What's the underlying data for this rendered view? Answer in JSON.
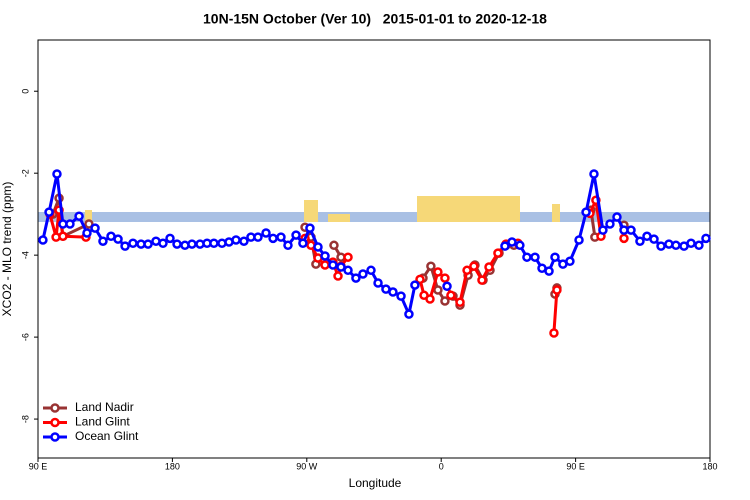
{
  "chart_data": {
    "type": "line",
    "title": "10N-15N October (Ver 10)   2015-01-01 to 2020-12-18",
    "x_label": "Longitude",
    "y_label": "XCO2 - MLO trend (ppm)",
    "xlim": [
      90,
      540
    ],
    "ylim": [
      -8.95,
      1.25
    ],
    "xticks": [
      {
        "value": 90,
        "label": "90 E"
      },
      180,
      {
        "value": 270,
        "label": "90 W"
      },
      {
        "value": 360,
        "label": "0"
      },
      {
        "value": 450,
        "label": "90 E"
      },
      {
        "value": 540,
        "label": "180"
      }
    ],
    "yticks": [
      0,
      -2,
      -4,
      -6,
      -8
    ],
    "legend": "bottom-left",
    "series": [
      {
        "name": "Land Nadir",
        "color": "#993333",
        "x": [
          100.0,
          104.1,
          106.7,
          124.1,
          null,
          268.8,
          272.8,
          276.1,
          null,
          288.2,
          292.9,
          null,
          347.8,
          353.1,
          357.8,
          362.5,
          367.9,
          372.6,
          378.0,
          382.6,
          388.0,
          392.7,
          398.7,
          403.4,
          408.7,
          null,
          436.2,
          437.5,
          null,
          460.3,
          462.9,
          null,
          482.4
        ],
        "values": [
          -3.0,
          -2.61,
          -3.54,
          -3.24,
          null,
          -3.32,
          -3.56,
          -4.22,
          null,
          -3.76,
          -4.05,
          null,
          -4.56,
          -4.27,
          -4.85,
          -5.12,
          -5.0,
          -5.22,
          -4.49,
          -4.24,
          -4.61,
          -4.37,
          -3.95,
          -3.76,
          -3.76,
          null,
          -4.95,
          -4.8,
          null,
          -2.9,
          -3.56,
          null,
          -3.27
        ]
      },
      {
        "name": "Land Glint",
        "color": "#ff0000",
        "x": [
          98.0,
          102.1,
          104.1,
          106.7,
          122.1,
          null,
          268.8,
          272.8,
          277.5,
          282.2,
          287.5,
          290.9,
          292.9,
          297.6,
          null,
          345.8,
          348.5,
          352.5,
          357.8,
          362.5,
          366.5,
          372.6,
          377.3,
          381.9,
          387.3,
          392.0,
          398.0,
          403.4,
          411.4,
          null,
          435.5,
          437.5,
          null,
          459.6,
          463.6,
          467.0,
          null,
          482.4
        ],
        "values": [
          -3.0,
          -3.56,
          -2.9,
          -3.54,
          -3.56,
          null,
          -3.59,
          -3.76,
          -4.07,
          -4.24,
          -4.17,
          -4.51,
          -4.27,
          -4.05,
          null,
          -4.59,
          -4.98,
          -5.07,
          -4.41,
          -4.56,
          -4.98,
          -5.15,
          -4.37,
          -4.27,
          -4.61,
          -4.29,
          -3.95,
          -3.73,
          -3.71,
          null,
          -5.9,
          -4.85,
          null,
          -2.98,
          -2.66,
          -3.54,
          null,
          -3.59
        ]
      },
      {
        "name": "Ocean Glint",
        "color": "#0000ff",
        "x": [
          93.3,
          97.4,
          102.7,
          106.7,
          111.4,
          117.5,
          122.8,
          128.2,
          133.5,
          138.9,
          143.6,
          148.3,
          153.6,
          159.0,
          163.7,
          169.0,
          173.7,
          178.4,
          183.1,
          188.4,
          193.1,
          198.5,
          203.2,
          207.8,
          213.2,
          217.9,
          222.6,
          227.9,
          232.6,
          237.3,
          242.7,
          247.4,
          252.7,
          257.4,
          262.8,
          267.4,
          272.1,
          277.5,
          282.2,
          287.5,
          292.9,
          297.6,
          302.9,
          307.6,
          313.0,
          317.7,
          323.0,
          327.7,
          333.1,
          338.4,
          342.4,
          null,
          363.9,
          null,
          402.7,
          407.4,
          412.7,
          417.4,
          422.8,
          427.5,
          432.2,
          436.2,
          441.5,
          446.2,
          452.3,
          457.0,
          462.3,
          468.3,
          473.0,
          477.7,
          482.4,
          487.1,
          493.1,
          497.8,
          502.5,
          507.2,
          512.5,
          517.2,
          522.6,
          527.3,
          532.6,
          537.3
        ],
        "values": [
          -3.63,
          -2.95,
          -2.02,
          -3.24,
          -3.24,
          -3.05,
          -3.46,
          -3.34,
          -3.66,
          -3.54,
          -3.61,
          -3.78,
          -3.71,
          -3.73,
          -3.73,
          -3.66,
          -3.71,
          -3.59,
          -3.73,
          -3.76,
          -3.73,
          -3.73,
          -3.71,
          -3.71,
          -3.71,
          -3.68,
          -3.63,
          -3.66,
          -3.56,
          -3.56,
          -3.46,
          -3.59,
          -3.56,
          -3.76,
          -3.51,
          -3.71,
          -3.34,
          -3.8,
          -4.02,
          -4.24,
          -4.29,
          -4.37,
          -4.56,
          -4.46,
          -4.37,
          -4.68,
          -4.83,
          -4.9,
          -5.0,
          -5.44,
          -4.73,
          null,
          -4.76,
          null,
          -3.78,
          -3.68,
          -3.76,
          -4.05,
          -4.05,
          -4.32,
          -4.39,
          -4.05,
          -4.22,
          -4.15,
          -3.63,
          -2.95,
          -2.02,
          -3.39,
          -3.24,
          -3.07,
          -3.39,
          -3.39,
          -3.66,
          -3.54,
          -3.61,
          -3.78,
          -3.73,
          -3.76,
          -3.78,
          -3.71,
          -3.76,
          -3.59
        ]
      }
    ]
  }
}
